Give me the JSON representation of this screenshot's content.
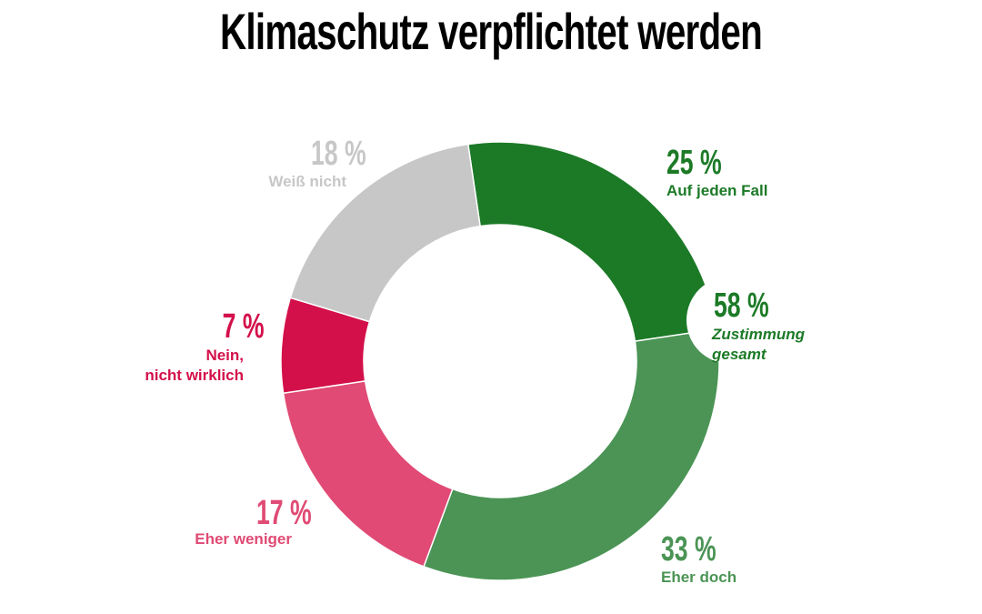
{
  "chart_data": {
    "type": "donut",
    "title": "Klimaschutz verpflichtet werden",
    "categories": [
      "Auf jeden Fall",
      "Eher doch",
      "Eher weniger",
      "Nein,\nnicht wirklich",
      "Weiß nicht"
    ],
    "values": [
      25,
      33,
      17,
      7,
      18
    ],
    "value_labels": [
      "25 %",
      "33 %",
      "17 %",
      "7 %",
      "18 %"
    ],
    "colors": [
      "#1c7a27",
      "#4b9455",
      "#e04a74",
      "#d3104a",
      "#c7c7c7"
    ],
    "annotation": {
      "label": "58 %",
      "text": "Zustimmung\ngesamt",
      "color": "#1c7a27"
    }
  }
}
